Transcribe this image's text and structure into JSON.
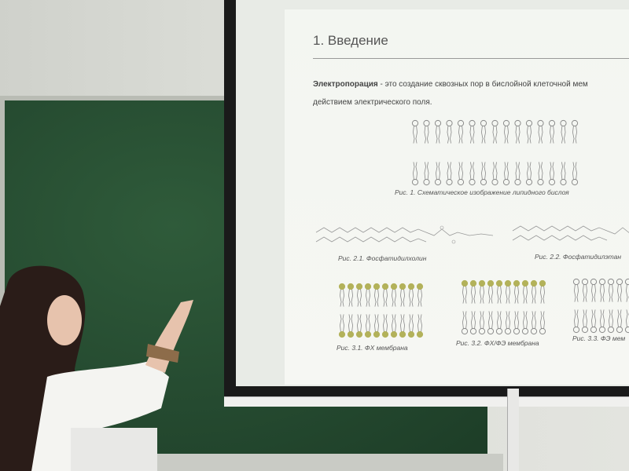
{
  "slide": {
    "title": "1. Введение",
    "intro_term": "Электропорация",
    "intro_rest_line1": " - это создание сквозных пор в бислойной клеточной мем",
    "intro_line2": "действием электрического поля.",
    "fig1_caption": "Рис. 1. Схематическое изображение липидного бислоя",
    "fig21_caption": "Рис. 2.1. Фосфатидилхолин",
    "fig22_caption": "Рис. 2.2. Фосфатидилэтан",
    "fig31_caption": "Рис. 3.1. ФХ мембрана",
    "fig32_caption": "Рис. 3.2. ФХ/ФЭ мембрана",
    "fig33_caption": "Рис. 3.3. ФЭ мем"
  },
  "colors": {
    "chalkboard": "#254a30",
    "lipid_grey": "#8a8a8a",
    "lipid_olive": "#b3b25a"
  }
}
